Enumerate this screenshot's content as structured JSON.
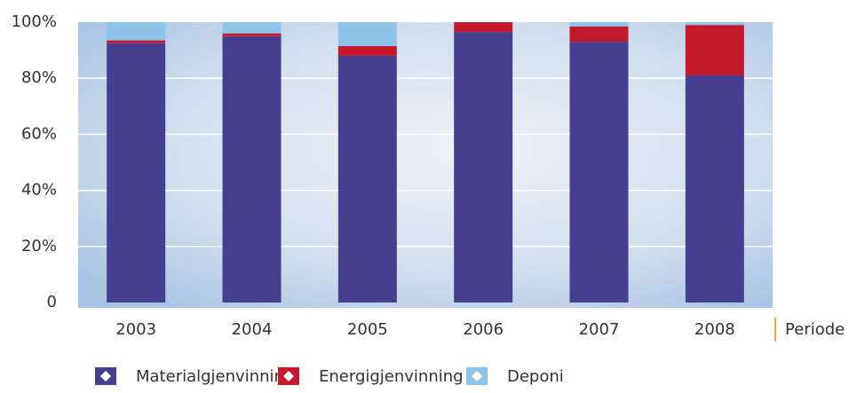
{
  "chart_data": {
    "type": "stacked_bar",
    "x_label": "Periode",
    "categories": [
      "2003",
      "2004",
      "2005",
      "2006",
      "2007",
      "2008"
    ],
    "series": [
      {
        "name": "Materialgjenvinning",
        "color": "#463f8f",
        "values": [
          92.5,
          95,
          88,
          96.5,
          93,
          81
        ]
      },
      {
        "name": "Energigjenvinning",
        "color": "#c4182c",
        "values": [
          1,
          1,
          3.5,
          3.5,
          5.5,
          18
        ]
      },
      {
        "name": "Deponi",
        "color": "#8ec4e8",
        "values": [
          6.5,
          4,
          8.5,
          0,
          1.5,
          1
        ]
      }
    ],
    "ylim": [
      0,
      100
    ],
    "yticks": [
      0,
      {
        "value": 20,
        "label": "20%"
      },
      {
        "value": 40,
        "label": "40%"
      },
      {
        "value": 60,
        "label": "60%"
      },
      {
        "value": 80,
        "label": "80%"
      },
      {
        "value": 100,
        "label": "100%"
      }
    ],
    "grid": true
  }
}
